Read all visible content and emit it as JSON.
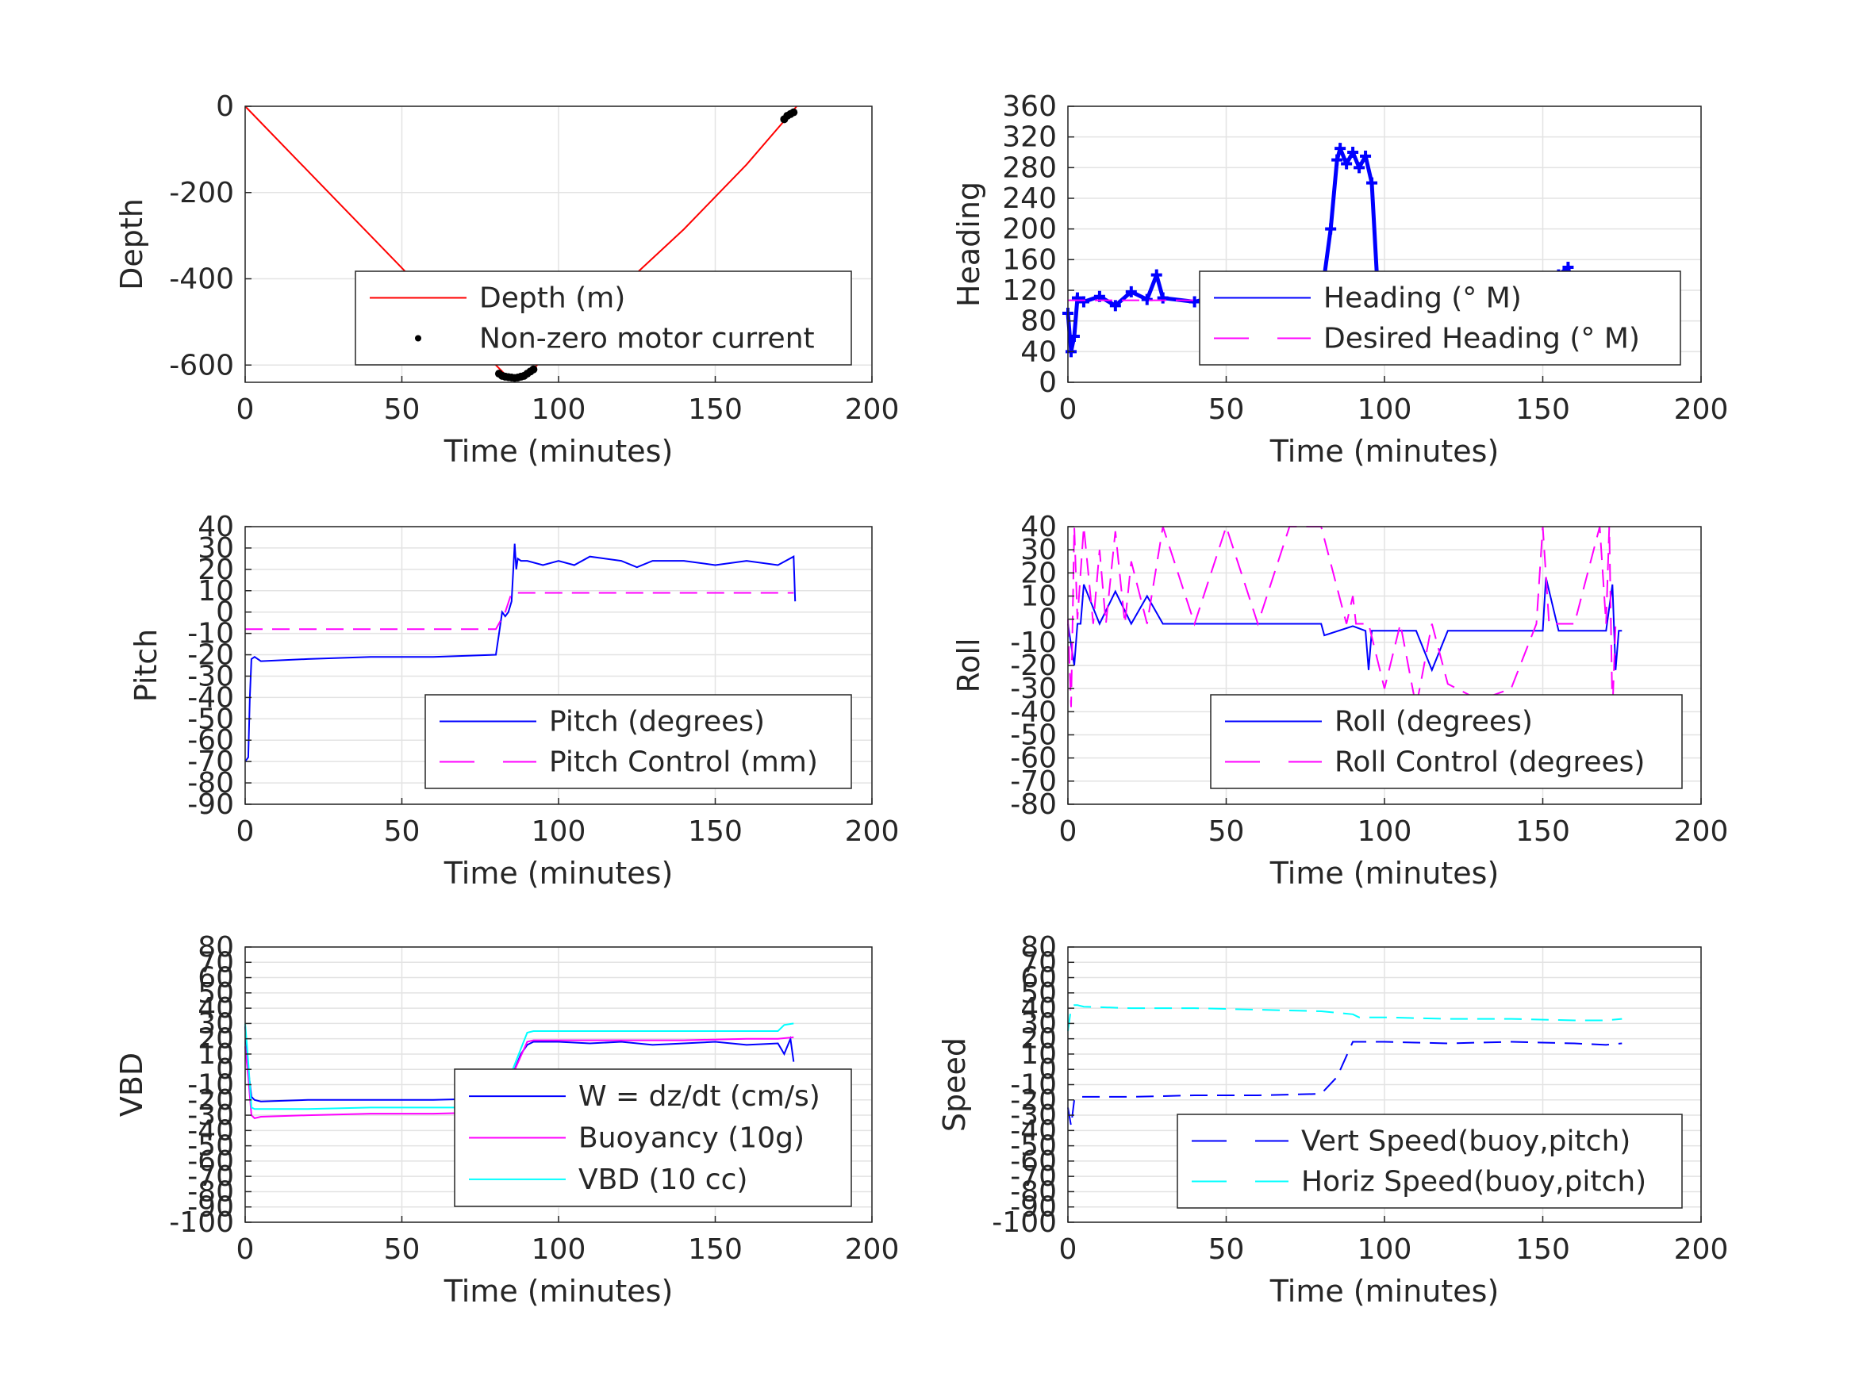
{
  "chart_data": [
    {
      "id": "depth",
      "type": "line",
      "xlabel": "Time (minutes)",
      "ylabel": "Depth",
      "xlim": [
        0,
        200
      ],
      "ylim": [
        -640,
        0
      ],
      "xticks": [
        0,
        50,
        100,
        150,
        200
      ],
      "yticks": [
        -600,
        -400,
        -200,
        0
      ],
      "grid": true,
      "legend": "bottom-right",
      "series": [
        {
          "name": "Depth (m)",
          "style": "solid",
          "color": "#ff0000",
          "marker": "none",
          "x": [
            0,
            20,
            40,
            60,
            80,
            83,
            86,
            89,
            92,
            100,
            120,
            140,
            160,
            176
          ],
          "y": [
            0,
            -150,
            -300,
            -450,
            -600,
            -622,
            -630,
            -622,
            -608,
            -555,
            -420,
            -285,
            -135,
            0
          ]
        },
        {
          "name": "Non-zero motor current",
          "style": "none",
          "color": "#000000",
          "marker": "dot",
          "x": [
            81,
            82,
            83,
            84,
            85,
            86,
            87,
            88,
            89,
            90,
            91,
            92,
            172,
            173,
            174,
            175
          ],
          "y": [
            -620,
            -625,
            -627,
            -628,
            -629,
            -630,
            -629,
            -627,
            -625,
            -620,
            -615,
            -610,
            -30,
            -22,
            -18,
            -14
          ]
        }
      ]
    },
    {
      "id": "heading",
      "type": "line",
      "xlabel": "Time (minutes)",
      "ylabel": "Heading",
      "xlim": [
        0,
        200
      ],
      "ylim": [
        0,
        360
      ],
      "xticks": [
        0,
        50,
        100,
        150,
        200
      ],
      "yticks": [
        0,
        40,
        80,
        120,
        160,
        200,
        240,
        280,
        320,
        360
      ],
      "grid": true,
      "legend": "center-right",
      "series": [
        {
          "name": "Heading (° M)",
          "style": "plus-markers",
          "color": "#0000ff",
          "x": [
            0,
            1,
            2,
            3,
            5,
            10,
            15,
            20,
            25,
            28,
            30,
            40,
            50,
            60,
            70,
            80,
            83,
            85,
            86,
            88,
            90,
            92,
            94,
            96,
            98,
            100,
            110,
            120,
            130,
            140,
            150,
            155,
            158,
            160,
            165,
            170,
            172,
            175,
            177
          ],
          "y": [
            90,
            40,
            60,
            110,
            105,
            112,
            100,
            118,
            108,
            140,
            110,
            105,
            115,
            100,
            112,
            108,
            200,
            290,
            305,
            285,
            300,
            280,
            295,
            260,
            110,
            100,
            108,
            115,
            100,
            112,
            105,
            140,
            150,
            110,
            100,
            108,
            70,
            105,
            100
          ]
        },
        {
          "name": "Desired Heading (° M)",
          "style": "dashed",
          "color": "#ff00ff",
          "x": [
            0,
            177
          ],
          "y": [
            107,
            107
          ]
        }
      ]
    },
    {
      "id": "pitch",
      "type": "line",
      "xlabel": "Time (minutes)",
      "ylabel": "Pitch",
      "xlim": [
        0,
        200
      ],
      "ylim": [
        -90,
        40
      ],
      "xticks": [
        0,
        50,
        100,
        150,
        200
      ],
      "yticks": [
        -90,
        -80,
        -70,
        -60,
        -50,
        -40,
        -30,
        -20,
        -10,
        0,
        10,
        20,
        30,
        40
      ],
      "grid": true,
      "legend": "bottom-right",
      "series": [
        {
          "name": "Pitch (degrees)",
          "style": "solid",
          "color": "#0000ff",
          "x": [
            0,
            1,
            1.5,
            2,
            3,
            5,
            20,
            40,
            60,
            80,
            81,
            82,
            83,
            84,
            85,
            86,
            86.5,
            87,
            88,
            90,
            95,
            100,
            105,
            110,
            120,
            125,
            130,
            140,
            150,
            160,
            170,
            175,
            175.5
          ],
          "y": [
            -70,
            -68,
            -40,
            -22,
            -21,
            -23,
            -22,
            -21,
            -21,
            -20,
            -10,
            0,
            -2,
            0,
            5,
            32,
            20,
            25,
            24,
            24,
            22,
            24,
            22,
            26,
            24,
            21,
            24,
            24,
            22,
            24,
            22,
            26,
            5
          ]
        },
        {
          "name": "Pitch Control (mm)",
          "style": "dashed",
          "color": "#ff00ff",
          "x": [
            0,
            80,
            83,
            85,
            86,
            175
          ],
          "y": [
            -8,
            -8,
            0,
            9,
            9,
            9
          ]
        }
      ]
    },
    {
      "id": "roll",
      "type": "line",
      "xlabel": "Time (minutes)",
      "ylabel": "Roll",
      "xlim": [
        0,
        200
      ],
      "ylim": [
        -80,
        40
      ],
      "xticks": [
        0,
        50,
        100,
        150,
        200
      ],
      "yticks": [
        -80,
        -70,
        -60,
        -50,
        -40,
        -30,
        -20,
        -10,
        0,
        10,
        20,
        30,
        40
      ],
      "grid": true,
      "legend": "bottom-right",
      "series": [
        {
          "name": "Roll (degrees)",
          "style": "solid",
          "color": "#0000ff",
          "x": [
            0,
            2,
            3,
            4,
            5,
            10,
            15,
            20,
            25,
            30,
            40,
            50,
            60,
            70,
            80,
            81,
            90,
            94,
            95,
            96,
            97,
            100,
            110,
            115,
            120,
            130,
            140,
            150,
            151,
            155,
            160,
            170,
            172,
            173,
            174,
            175
          ],
          "y": [
            -2,
            -20,
            -2,
            -2,
            15,
            -2,
            12,
            -2,
            10,
            -2,
            -2,
            -2,
            -2,
            -2,
            -2,
            -7,
            -3,
            -5,
            -22,
            -5,
            -5,
            -5,
            -5,
            -22,
            -5,
            -5,
            -5,
            -5,
            18,
            -5,
            -5,
            -5,
            15,
            -22,
            -5,
            -5
          ]
        },
        {
          "name": "Roll Control (degrees)",
          "style": "dashed",
          "color": "#ff00ff",
          "x": [
            0,
            1,
            2,
            3,
            5,
            8,
            10,
            12,
            15,
            18,
            20,
            25,
            30,
            40,
            50,
            60,
            70,
            80,
            88,
            90,
            91,
            95,
            100,
            105,
            110,
            115,
            120,
            130,
            140,
            148,
            150,
            152,
            160,
            168,
            170,
            171,
            172,
            173
          ],
          "y": [
            0,
            -38,
            40,
            0,
            40,
            -2,
            30,
            -2,
            38,
            -2,
            25,
            -2,
            40,
            -2,
            40,
            -2,
            40,
            40,
            -2,
            10,
            -2,
            -2,
            -30,
            -2,
            -38,
            -2,
            -28,
            -35,
            -30,
            -2,
            40,
            -2,
            -2,
            40,
            -2,
            40,
            -40,
            -2
          ]
        }
      ]
    },
    {
      "id": "vbd",
      "type": "line",
      "xlabel": "Time (minutes)",
      "ylabel": "VBD",
      "xlim": [
        0,
        200
      ],
      "ylim": [
        -100,
        80
      ],
      "xticks": [
        0,
        50,
        100,
        150,
        200
      ],
      "yticks": [
        -100,
        -90,
        -80,
        -70,
        -60,
        -50,
        -40,
        -30,
        -20,
        -10,
        0,
        10,
        20,
        30,
        40,
        50,
        60,
        70,
        80
      ],
      "grid": true,
      "legend": "bottom-right",
      "series": [
        {
          "name": "W = dz/dt (cm/s)",
          "style": "solid",
          "color": "#0000ff",
          "x": [
            0,
            1,
            2,
            3,
            5,
            20,
            40,
            60,
            80,
            81,
            83,
            86,
            88,
            90,
            92,
            100,
            110,
            120,
            130,
            140,
            150,
            160,
            170,
            172,
            174,
            175
          ],
          "y": [
            28,
            0,
            -18,
            -20,
            -21,
            -20,
            -20,
            -20,
            -19,
            -12,
            -10,
            0,
            10,
            16,
            18,
            18,
            17,
            18,
            16,
            17,
            18,
            16,
            17,
            10,
            20,
            5
          ]
        },
        {
          "name": "Buoyancy (10g)",
          "style": "solid",
          "color": "#ff00ff",
          "x": [
            0,
            1,
            2,
            3,
            5,
            20,
            40,
            60,
            80,
            81,
            85,
            90,
            92,
            100,
            120,
            140,
            160,
            170,
            175
          ],
          "y": [
            15,
            -5,
            -30,
            -32,
            -31,
            -30,
            -29,
            -29,
            -28,
            -28,
            -5,
            18,
            19,
            19,
            19,
            19,
            20,
            20,
            21
          ]
        },
        {
          "name": "VBD (10 cc)",
          "style": "solid",
          "color": "#00ffff",
          "x": [
            0,
            1,
            2,
            3,
            5,
            20,
            40,
            60,
            80,
            81,
            85,
            90,
            92,
            100,
            120,
            140,
            160,
            170,
            172,
            175
          ],
          "y": [
            30,
            5,
            -25,
            -26,
            -26,
            -26,
            -25,
            -25,
            -25,
            -25,
            -2,
            24,
            25,
            25,
            25,
            25,
            25,
            25,
            29,
            30
          ]
        }
      ]
    },
    {
      "id": "speed",
      "type": "line",
      "xlabel": "Time (minutes)",
      "ylabel": "Speed",
      "xlim": [
        0,
        200
      ],
      "ylim": [
        -100,
        80
      ],
      "xticks": [
        0,
        50,
        100,
        150,
        200
      ],
      "yticks": [
        -100,
        -90,
        -80,
        -70,
        -60,
        -50,
        -40,
        -30,
        -20,
        -10,
        0,
        10,
        20,
        30,
        40,
        50,
        60,
        70,
        80
      ],
      "grid": true,
      "legend": "bottom-right",
      "series": [
        {
          "name": "Vert Speed(buoy,pitch)",
          "style": "dashed",
          "color": "#0000ff",
          "x": [
            0,
            1,
            2,
            3,
            5,
            20,
            40,
            60,
            80,
            85,
            90,
            92,
            100,
            120,
            140,
            160,
            170,
            175
          ],
          "y": [
            -25,
            -37,
            -20,
            -18,
            -18,
            -18,
            -17,
            -17,
            -16,
            -5,
            18,
            18,
            18,
            17,
            18,
            17,
            16,
            17
          ]
        },
        {
          "name": "Horiz Speed(buoy,pitch)",
          "style": "dashed",
          "color": "#00ffff",
          "x": [
            0,
            1,
            2,
            3,
            5,
            20,
            40,
            60,
            80,
            85,
            90,
            92,
            100,
            120,
            140,
            160,
            170,
            175
          ],
          "y": [
            25,
            40,
            42,
            42,
            41,
            40,
            40,
            39,
            38,
            37,
            36,
            34,
            34,
            33,
            33,
            32,
            32,
            33
          ]
        }
      ]
    }
  ]
}
